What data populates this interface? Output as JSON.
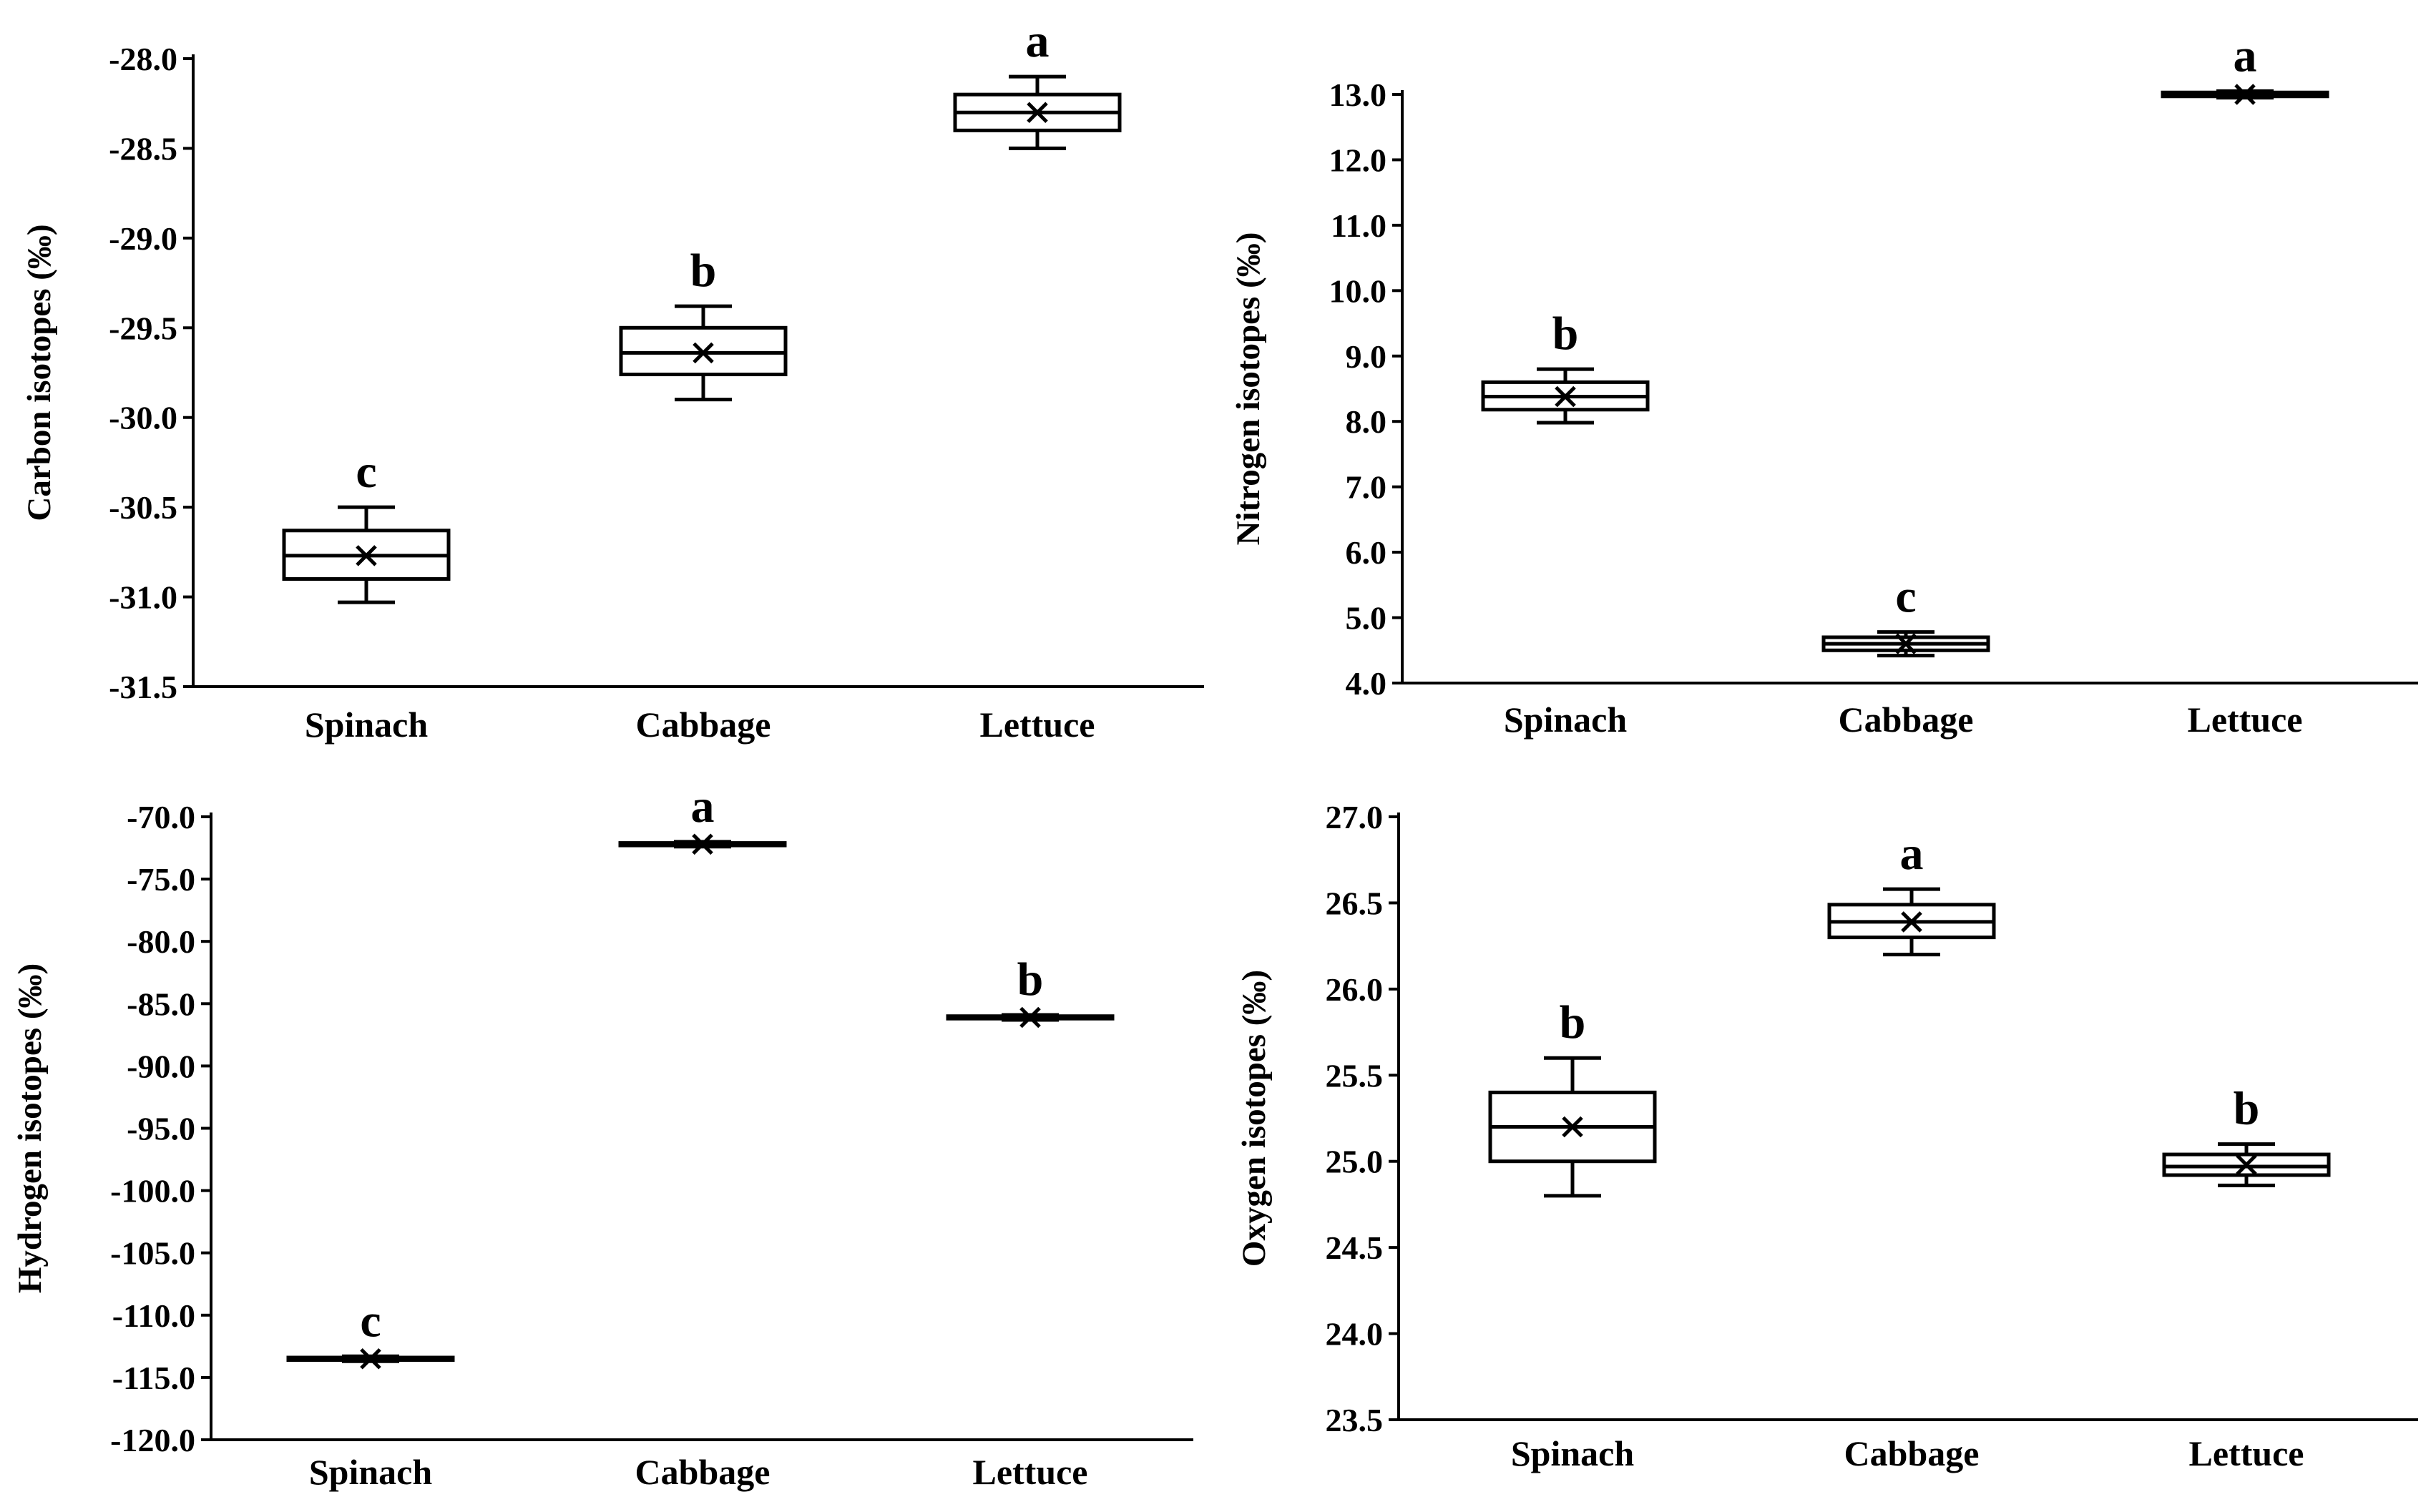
{
  "chart_data": [
    {
      "type": "box",
      "panel": "top-left",
      "ylabel": "Carbon isotopes (‰)",
      "categories": [
        "Spinach",
        "Cabbage",
        "Lettuce"
      ],
      "ylim": [
        -31.5,
        -28.0
      ],
      "yticks": [
        -28.0,
        -28.5,
        -29.0,
        -29.5,
        -30.0,
        -30.5,
        -31.0,
        -31.5
      ],
      "yticklabels": [
        "-28.0",
        "-28.5",
        "-29.0",
        "-29.5",
        "-30.0",
        "-30.5",
        "-31.0",
        "-31.5"
      ],
      "boxes": [
        {
          "min": -31.03,
          "q1": -30.9,
          "median": -30.77,
          "q3": -30.63,
          "max": -30.5,
          "mean": -30.77
        },
        {
          "min": -29.9,
          "q1": -29.76,
          "median": -29.64,
          "q3": -29.5,
          "max": -29.38,
          "mean": -29.64
        },
        {
          "min": -28.5,
          "q1": -28.4,
          "median": -28.3,
          "q3": -28.2,
          "max": -28.1,
          "mean": -28.3
        }
      ],
      "significance": [
        "c",
        "b",
        "a"
      ]
    },
    {
      "type": "box",
      "panel": "top-right",
      "ylabel": "Nitrogen isotopes (‰)",
      "categories": [
        "Spinach",
        "Cabbage",
        "Lettuce"
      ],
      "ylim": [
        4.0,
        13.0
      ],
      "yticks": [
        13.0,
        12.0,
        11.0,
        10.0,
        9.0,
        8.0,
        7.0,
        6.0,
        5.0,
        4.0
      ],
      "yticklabels": [
        "13.0",
        "12.0",
        "11.0",
        "10.0",
        "9.0",
        "8.0",
        "7.0",
        "6.0",
        "5.0",
        "4.0"
      ],
      "boxes": [
        {
          "min": 7.98,
          "q1": 8.18,
          "median": 8.38,
          "q3": 8.6,
          "max": 8.8,
          "mean": 8.38
        },
        {
          "min": 4.42,
          "q1": 4.5,
          "median": 4.6,
          "q3": 4.7,
          "max": 4.78,
          "mean": 4.6
        },
        {
          "min": 12.95,
          "q1": 12.97,
          "median": 13.0,
          "q3": 13.03,
          "max": 13.05,
          "mean": 13.0
        }
      ],
      "significance": [
        "b",
        "c",
        "a"
      ]
    },
    {
      "type": "box",
      "panel": "bottom-left",
      "ylabel": "Hydrogen isotopes (‰)",
      "categories": [
        "Spinach",
        "Cabbage",
        "Lettuce"
      ],
      "ylim": [
        -120.0,
        -70.0
      ],
      "yticks": [
        -70.0,
        -75.0,
        -80.0,
        -85.0,
        -90.0,
        -95.0,
        -100.0,
        -105.0,
        -110.0,
        -115.0,
        -120.0
      ],
      "yticklabels": [
        "-70.0",
        "-75.0",
        "-80.0",
        "-85.0",
        "-90.0",
        "-95.0",
        "-100.0",
        "-105.0",
        "-110.0",
        "-115.0",
        "-120.0"
      ],
      "boxes": [
        {
          "min": -113.7,
          "q1": -113.6,
          "median": -113.5,
          "q3": -113.4,
          "max": -113.3,
          "mean": -113.5
        },
        {
          "min": -72.4,
          "q1": -72.3,
          "median": -72.2,
          "q3": -72.1,
          "max": -72.0,
          "mean": -72.2
        },
        {
          "min": -86.3,
          "q1": -86.2,
          "median": -86.1,
          "q3": -86.0,
          "max": -85.9,
          "mean": -86.1
        }
      ],
      "significance": [
        "c",
        "a",
        "b"
      ]
    },
    {
      "type": "box",
      "panel": "bottom-right",
      "ylabel": "Oxygen isotopes (‰)",
      "categories": [
        "Spinach",
        "Cabbage",
        "Lettuce"
      ],
      "ylim": [
        23.5,
        27.0
      ],
      "yticks": [
        27.0,
        26.5,
        26.0,
        25.5,
        25.0,
        24.5,
        24.0,
        23.5
      ],
      "yticklabels": [
        "27.0",
        "26.5",
        "26.0",
        "25.5",
        "25.0",
        "24.5",
        "24.0",
        "23.5"
      ],
      "boxes": [
        {
          "min": 24.8,
          "q1": 25.0,
          "median": 25.2,
          "q3": 25.4,
          "max": 25.6,
          "mean": 25.2
        },
        {
          "min": 26.2,
          "q1": 26.3,
          "median": 26.39,
          "q3": 26.49,
          "max": 26.58,
          "mean": 26.39
        },
        {
          "min": 24.86,
          "q1": 24.92,
          "median": 24.97,
          "q3": 25.04,
          "max": 25.1,
          "mean": 24.98
        }
      ],
      "significance": [
        "b",
        "a",
        "b"
      ]
    }
  ]
}
